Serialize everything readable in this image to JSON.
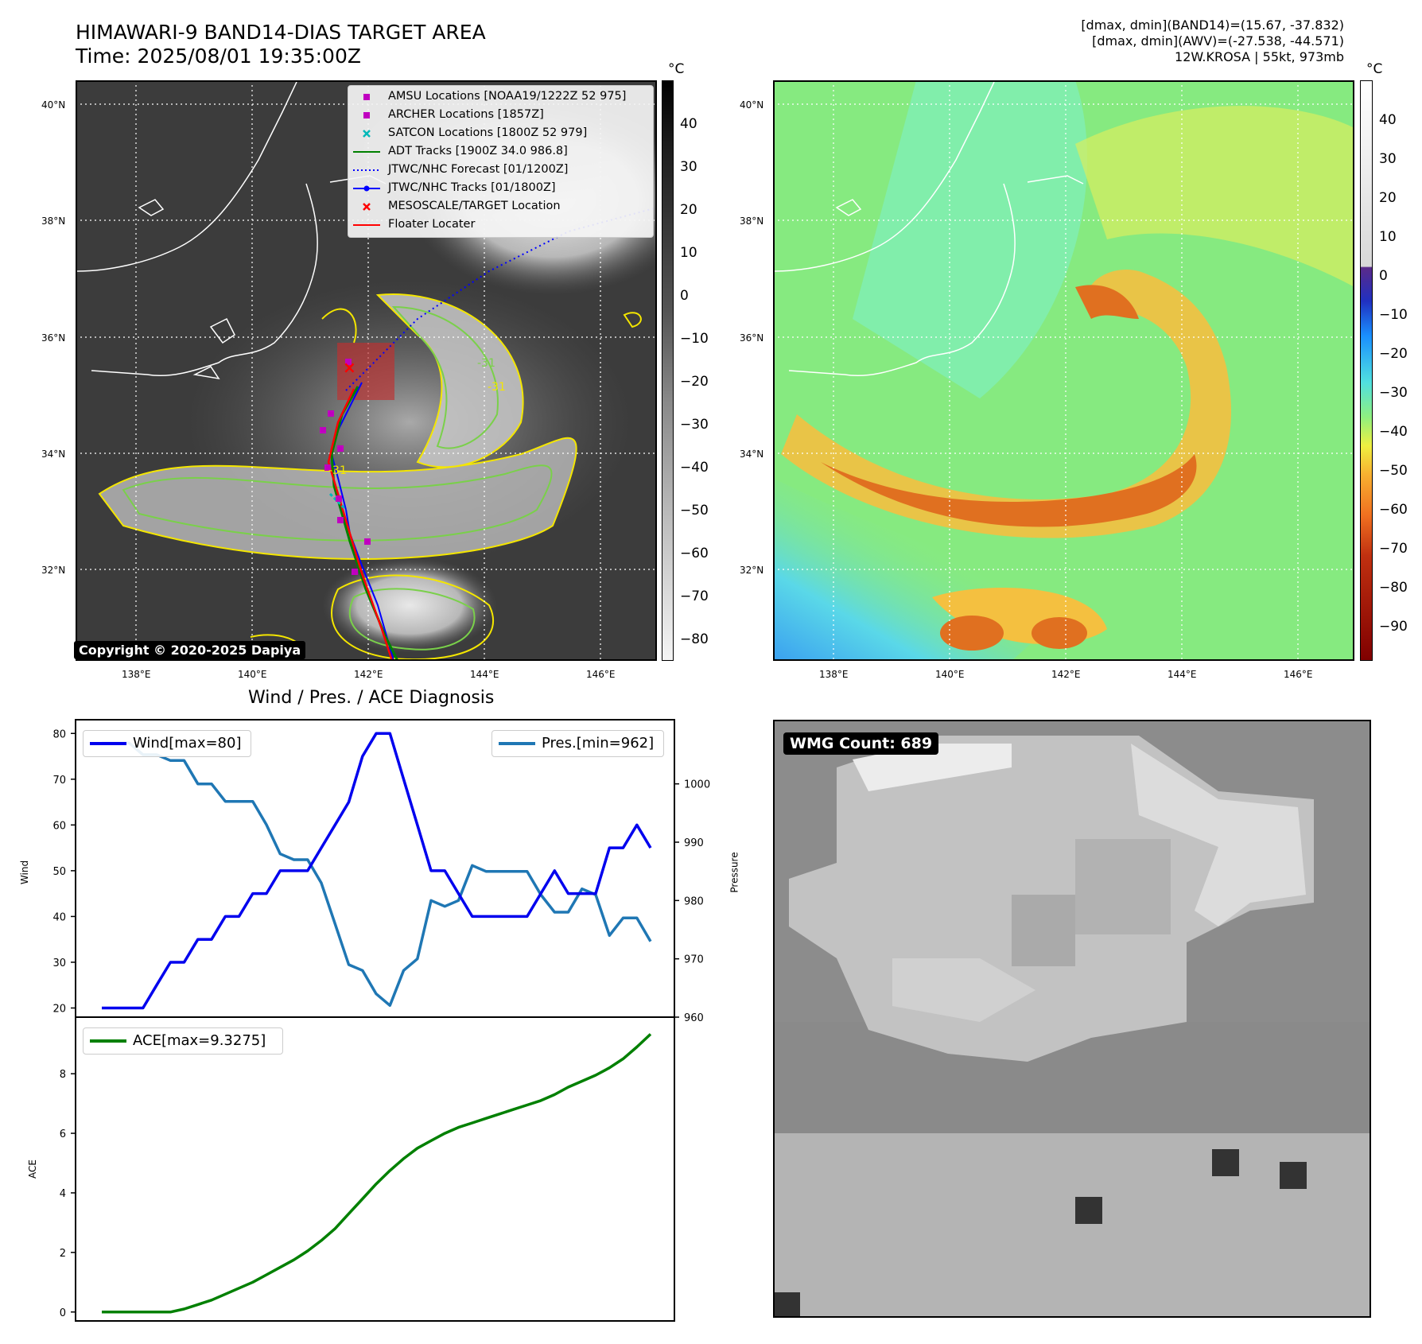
{
  "header": {
    "title_line1": "HIMAWARI-9 BAND14-DIAS TARGET AREA",
    "title_line2": "Time: 2025/08/01 19:35:00Z",
    "info_line1": "[dmax, dmin](BAND14)=(15.67, -37.832)",
    "info_line2": "[dmax, dmin](AWV)=(-27.538, -44.571)",
    "info_line3": "12W.KROSA | 55kt, 973mb"
  },
  "map": {
    "lat_labels": [
      "40°N",
      "38°N",
      "36°N",
      "34°N",
      "32°N"
    ],
    "lon_labels": [
      "138°E",
      "140°E",
      "142°E",
      "144°E",
      "146°E"
    ],
    "copyright": "Copyright © 2020-2025 Dapiya",
    "legend": [
      {
        "label": "AMSU Locations [NOAA19/1222Z 52 975]",
        "symbol": "square",
        "color": "#c000c0"
      },
      {
        "label": "ARCHER Locations [1857Z]",
        "symbol": "square",
        "color": "#c000c0"
      },
      {
        "label": "SATCON Locations [1800Z 52 979]",
        "symbol": "x",
        "color": "#00b8b8"
      },
      {
        "label": "ADT Tracks [1900Z 34.0 986.8]",
        "symbol": "line",
        "color": "#008000"
      },
      {
        "label": "JTWC/NHC Forecast [01/1200Z]",
        "symbol": "dotted",
        "color": "#0000ff"
      },
      {
        "label": "JTWC/NHC Tracks [01/1800Z]",
        "symbol": "line-dot",
        "color": "#0000ff"
      },
      {
        "label": "MESOSCALE/TARGET Location",
        "symbol": "x",
        "color": "#ff0000"
      },
      {
        "label": "Floater Locater",
        "symbol": "line",
        "color": "#ff0000"
      }
    ],
    "contour_labels": [
      "-31",
      "-31",
      "-31"
    ]
  },
  "colorbar_left": {
    "unit": "°C",
    "ticks": [
      "40",
      "30",
      "20",
      "10",
      "0",
      "−10",
      "−20",
      "−30",
      "−40",
      "−50",
      "−60",
      "−70",
      "−80"
    ]
  },
  "colorbar_right": {
    "unit": "°C",
    "ticks": [
      "40",
      "30",
      "20",
      "10",
      "0",
      "−10",
      "−20",
      "−30",
      "−40",
      "−50",
      "−60",
      "−70",
      "−80",
      "−90"
    ]
  },
  "wmg": {
    "label": "WMG Count: 689"
  },
  "chart_data": [
    {
      "type": "line",
      "title": "Wind / Pres. / ACE Diagnosis",
      "ylabel": "Wind",
      "ylabel_right": "Pressure",
      "ylim": [
        18,
        83
      ],
      "ylim_right": [
        960,
        1011
      ],
      "yticks": [
        20,
        30,
        40,
        50,
        60,
        70,
        80
      ],
      "yticks_right": [
        960,
        970,
        980,
        990,
        1000
      ],
      "series": [
        {
          "name": "Wind[max=80]",
          "axis": "left",
          "color": "#0000ee",
          "values": [
            20,
            20,
            20,
            20,
            25,
            30,
            30,
            35,
            35,
            40,
            40,
            45,
            45,
            50,
            50,
            50,
            55,
            60,
            65,
            75,
            80,
            80,
            70,
            60,
            50,
            50,
            45,
            40,
            40,
            40,
            40,
            40,
            45,
            50,
            45,
            45,
            45,
            55,
            55,
            60,
            55
          ]
        },
        {
          "name": "Pres.[min=962]",
          "axis": "right",
          "color": "#1f77b4",
          "values": [
            1007,
            1007,
            1007,
            1005,
            1005,
            1004,
            1004,
            1000,
            1000,
            997,
            997,
            997,
            993,
            988,
            987,
            987,
            983,
            976,
            969,
            968,
            964,
            962,
            968,
            970,
            980,
            979,
            980,
            986,
            985,
            985,
            985,
            985,
            981,
            978,
            978,
            982,
            981,
            974,
            977,
            977,
            973
          ]
        }
      ]
    },
    {
      "type": "line",
      "ylabel": "ACE",
      "ylim": [
        -0.3,
        9.9
      ],
      "yticks": [
        0,
        2,
        4,
        6,
        8
      ],
      "series": [
        {
          "name": "ACE[max=9.3275]",
          "color": "#008000",
          "values": [
            0,
            0,
            0,
            0,
            0,
            0,
            0.1,
            0.25,
            0.4,
            0.6,
            0.8,
            1.0,
            1.25,
            1.5,
            1.75,
            2.05,
            2.4,
            2.8,
            3.3,
            3.8,
            4.3,
            4.75,
            5.15,
            5.5,
            5.75,
            6.0,
            6.2,
            6.35,
            6.5,
            6.65,
            6.8,
            6.95,
            7.1,
            7.3,
            7.55,
            7.75,
            7.95,
            8.2,
            8.5,
            8.9,
            9.3275
          ]
        }
      ]
    }
  ]
}
